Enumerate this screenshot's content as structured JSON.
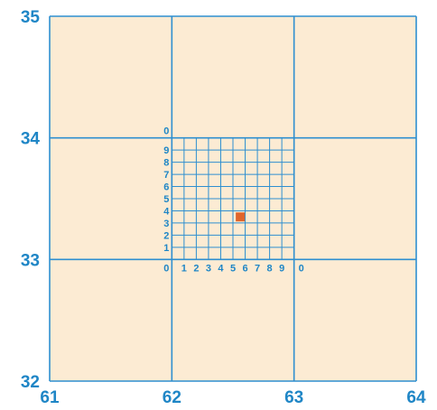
{
  "colors": {
    "background": "#FCEBD3",
    "grid_line": "#2E8FD0",
    "label": "#1F86C6",
    "marker": "#E0652C"
  },
  "axes": {
    "x_labels": [
      "61",
      "62",
      "63",
      "64"
    ],
    "y_labels": [
      "32",
      "33",
      "34",
      "35"
    ]
  },
  "subgrid": {
    "x_labels": [
      "0",
      "1",
      "2",
      "3",
      "4",
      "5",
      "6",
      "7",
      "8",
      "9",
      "0"
    ],
    "y_labels": [
      "0",
      "1",
      "2",
      "3",
      "4",
      "5",
      "6",
      "7",
      "8",
      "9",
      "0"
    ]
  },
  "marker": {
    "x": 62.56,
    "y": 33.35
  }
}
